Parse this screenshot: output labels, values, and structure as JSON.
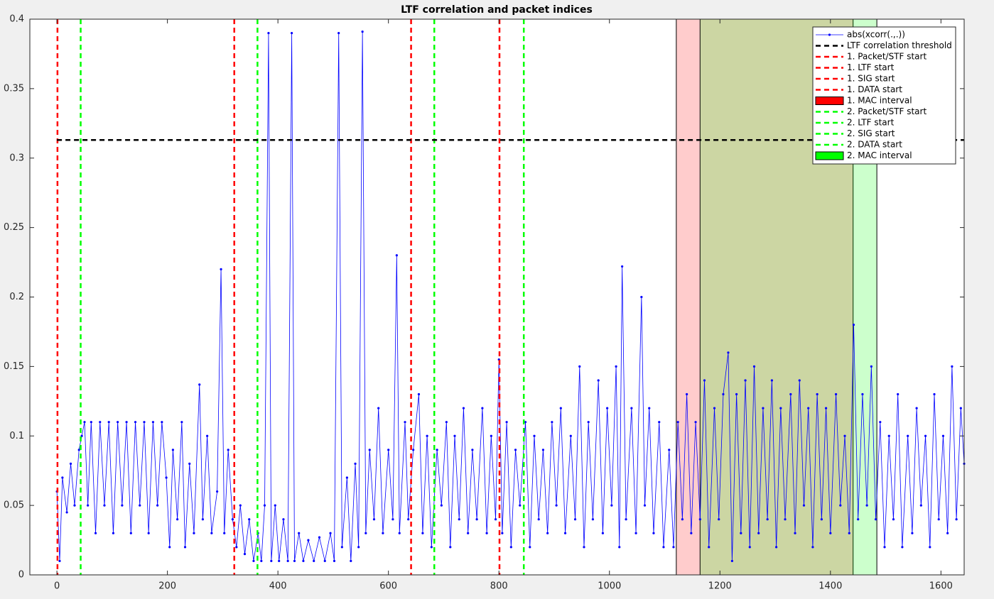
{
  "chart_data": {
    "type": "line",
    "title": "LTF correlation and packet indices",
    "x": [
      0,
      5,
      10,
      18,
      25,
      32,
      40,
      45,
      50,
      56,
      62,
      70,
      78,
      86,
      94,
      102,
      110,
      118,
      126,
      134,
      142,
      150,
      158,
      166,
      174,
      182,
      190,
      198,
      204,
      210,
      218,
      226,
      232,
      240,
      248,
      258,
      264,
      272,
      280,
      290,
      297,
      303,
      310,
      318,
      325,
      332,
      340,
      348,
      356,
      364,
      370,
      376,
      383,
      388,
      395,
      402,
      410,
      418,
      425,
      430,
      438,
      446,
      455,
      465,
      475,
      485,
      495,
      502,
      510,
      516,
      525,
      532,
      540,
      546,
      553,
      559,
      566,
      574,
      582,
      590,
      600,
      608,
      615,
      620,
      630,
      636,
      645,
      655,
      662,
      670,
      678,
      688,
      696,
      705,
      712,
      720,
      728,
      736,
      744,
      752,
      760,
      770,
      778,
      786,
      794,
      800,
      806,
      814,
      822,
      830,
      838,
      848,
      856,
      864,
      872,
      880,
      888,
      896,
      904,
      912,
      920,
      930,
      938,
      946,
      954,
      962,
      970,
      980,
      988,
      996,
      1004,
      1012,
      1018,
      1023,
      1030,
      1040,
      1048,
      1058,
      1064,
      1072,
      1080,
      1090,
      1098,
      1108,
      1116,
      1124,
      1132,
      1140,
      1148,
      1156,
      1164,
      1172,
      1180,
      1190,
      1198,
      1206,
      1215,
      1222,
      1230,
      1238,
      1246,
      1254,
      1262,
      1270,
      1278,
      1286,
      1294,
      1302,
      1310,
      1318,
      1328,
      1336,
      1344,
      1352,
      1360,
      1368,
      1376,
      1384,
      1392,
      1400,
      1410,
      1418,
      1426,
      1434,
      1442,
      1450,
      1458,
      1466,
      1474,
      1482,
      1490,
      1498,
      1506,
      1514,
      1522,
      1530,
      1540,
      1548,
      1556,
      1564,
      1572,
      1580,
      1588,
      1596,
      1604,
      1612,
      1620,
      1628,
      1636,
      1642
    ],
    "series": [
      {
        "name": "abs(xcorr(.,.))",
        "color": "#0000ff",
        "values": [
          0.06,
          0.01,
          0.07,
          0.045,
          0.08,
          0.05,
          0.09,
          0.1,
          0.11,
          0.05,
          0.11,
          0.03,
          0.11,
          0.05,
          0.11,
          0.03,
          0.11,
          0.05,
          0.11,
          0.03,
          0.11,
          0.05,
          0.11,
          0.03,
          0.11,
          0.05,
          0.11,
          0.07,
          0.02,
          0.09,
          0.04,
          0.11,
          0.02,
          0.08,
          0.03,
          0.137,
          0.04,
          0.1,
          0.03,
          0.06,
          0.22,
          0.03,
          0.09,
          0.04,
          0.02,
          0.05,
          0.015,
          0.04,
          0.01,
          0.03,
          0.01,
          0.05,
          0.39,
          0.01,
          0.05,
          0.01,
          0.04,
          0.01,
          0.39,
          0.01,
          0.03,
          0.01,
          0.025,
          0.01,
          0.027,
          0.01,
          0.03,
          0.01,
          0.39,
          0.02,
          0.07,
          0.01,
          0.08,
          0.02,
          0.391,
          0.03,
          0.09,
          0.04,
          0.12,
          0.03,
          0.09,
          0.04,
          0.23,
          0.03,
          0.11,
          0.04,
          0.09,
          0.13,
          0.03,
          0.1,
          0.02,
          0.09,
          0.05,
          0.11,
          0.02,
          0.1,
          0.04,
          0.12,
          0.03,
          0.09,
          0.04,
          0.12,
          0.03,
          0.1,
          0.04,
          0.155,
          0.03,
          0.11,
          0.02,
          0.09,
          0.05,
          0.11,
          0.02,
          0.1,
          0.04,
          0.09,
          0.03,
          0.11,
          0.05,
          0.12,
          0.03,
          0.1,
          0.04,
          0.15,
          0.02,
          0.11,
          0.04,
          0.14,
          0.03,
          0.12,
          0.05,
          0.15,
          0.02,
          0.222,
          0.04,
          0.12,
          0.03,
          0.2,
          0.05,
          0.12,
          0.03,
          0.11,
          0.02,
          0.09,
          0.02,
          0.11,
          0.04,
          0.13,
          0.03,
          0.11,
          0.04,
          0.14,
          0.02,
          0.12,
          0.04,
          0.13,
          0.16,
          0.01,
          0.13,
          0.03,
          0.14,
          0.02,
          0.15,
          0.03,
          0.12,
          0.04,
          0.14,
          0.02,
          0.12,
          0.04,
          0.13,
          0.03,
          0.14,
          0.05,
          0.12,
          0.02,
          0.13,
          0.04,
          0.12,
          0.03,
          0.13,
          0.05,
          0.1,
          0.03,
          0.18,
          0.04,
          0.13,
          0.05,
          0.15,
          0.04,
          0.11,
          0.02,
          0.1,
          0.04,
          0.13,
          0.02,
          0.1,
          0.03,
          0.12,
          0.05,
          0.1,
          0.02,
          0.13,
          0.04,
          0.1,
          0.03,
          0.15,
          0.04,
          0.12,
          0.08
        ]
      }
    ],
    "threshold": {
      "name": "LTF correlation threshold",
      "value": 0.313,
      "color": "#000000"
    },
    "markers": [
      {
        "name": "1. Packet/STF start",
        "x": 1,
        "color": "#ff0000"
      },
      {
        "name": "1. LTF start",
        "x": 321,
        "color": "#ff0000"
      },
      {
        "name": "1. SIG start",
        "x": 641,
        "color": "#ff0000"
      },
      {
        "name": "1. DATA start",
        "x": 801,
        "color": "#ff0000"
      },
      {
        "name": "1. MAC interval",
        "range": [
          1121,
          1441
        ],
        "color": "#ff0000"
      },
      {
        "name": "2. Packet/STF start",
        "x": 43,
        "color": "#00ff00"
      },
      {
        "name": "2. LTF start",
        "x": 363,
        "color": "#00ff00"
      },
      {
        "name": "2. SIG start",
        "x": 683,
        "color": "#00ff00"
      },
      {
        "name": "2. DATA start",
        "x": 845,
        "color": "#00ff00"
      },
      {
        "name": "2. MAC interval",
        "range": [
          1164,
          1484
        ],
        "color": "#00ff00"
      }
    ],
    "xlim": [
      -49,
      1642
    ],
    "ylim": [
      0,
      0.4
    ],
    "xticks": [
      0,
      200,
      400,
      600,
      800,
      1000,
      1200,
      1400,
      1600
    ],
    "yticks": [
      0,
      0.05,
      0.1,
      0.15,
      0.2,
      0.25,
      0.3,
      0.35,
      0.4
    ],
    "legend": "upper right"
  }
}
